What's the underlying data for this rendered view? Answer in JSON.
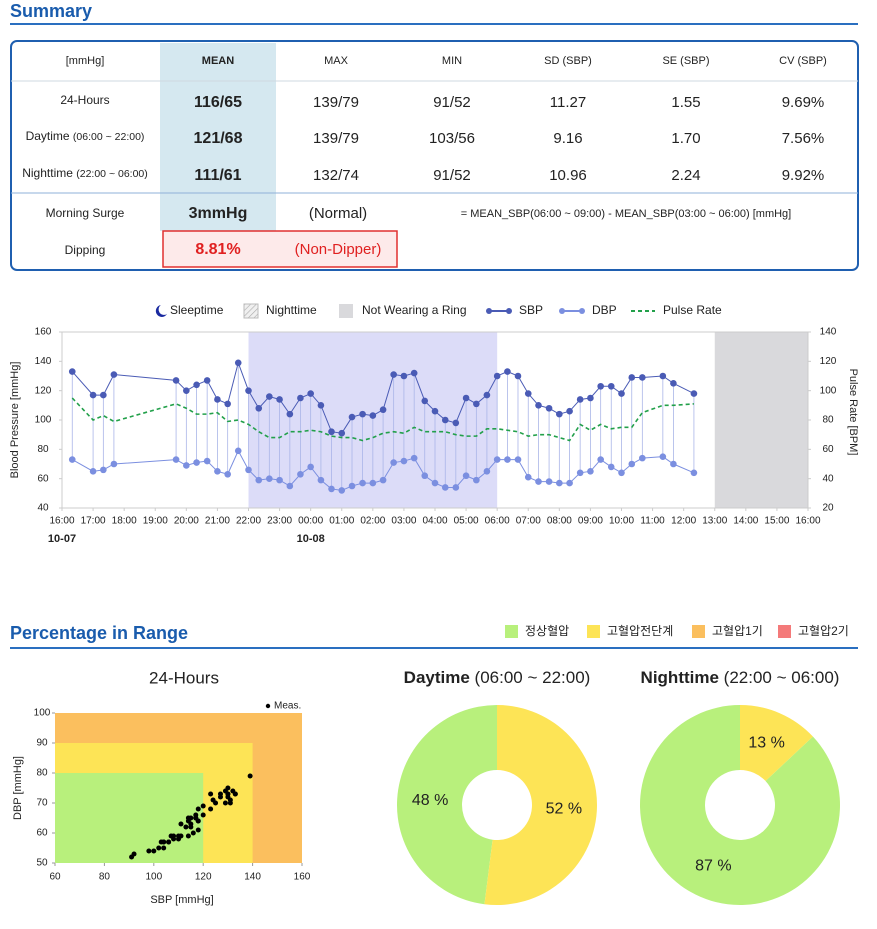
{
  "summary": {
    "title": "Summary",
    "unit": "[mmHg]",
    "columns": [
      "MEAN",
      "MAX",
      "MIN",
      "SD (SBP)",
      "SE (SBP)",
      "CV (SBP)"
    ],
    "rows": [
      {
        "label": "24-Hours",
        "values": [
          "116/65",
          "139/79",
          "91/52",
          "11.27",
          "1.55",
          "9.69%"
        ]
      },
      {
        "label": "Daytime",
        "note": "(06:00 ~ 22:00)",
        "values": [
          "121/68",
          "139/79",
          "103/56",
          "9.16",
          "1.70",
          "7.56%"
        ]
      },
      {
        "label": "Nighttime",
        "note": "(22:00 ~ 06:00)",
        "values": [
          "111/61",
          "132/74",
          "91/52",
          "10.96",
          "2.24",
          "9.92%"
        ]
      }
    ],
    "morning_surge": {
      "label": "Morning Surge",
      "value": "3mmHg",
      "status": "(Normal)",
      "formula": "= MEAN_SBP(06:00 ~ 09:00) - MEAN_SBP(03:00 ~ 06:00) [mmHg]"
    },
    "dipping": {
      "label": "Dipping",
      "value": "8.81%",
      "status": "(Non-Dipper)"
    }
  },
  "range_section": {
    "title": "Percentage in Range",
    "labels": [
      "정상혈압",
      "고혈압전단계",
      "고혈압1기",
      "고혈압2기"
    ],
    "colors": [
      "#b8f07c",
      "#fde456",
      "#fbbf5e",
      "#f47a7a"
    ]
  },
  "chart_data": [
    {
      "type": "line",
      "legend_items": [
        "Sleeptime",
        "Nighttime",
        "Not Wearing a Ring"
      ],
      "regions": [
        {
          "range": [
            22,
            30
          ],
          "color": "#dcdcf8"
        },
        {
          "range": [
            37,
            40
          ],
          "color": "#d9d9dc"
        }
      ],
      "ylabel": "Blood Pressure [mmHg]",
      "y2label": "Pulse Rate [BPM]",
      "xlim": [
        16,
        40
      ],
      "xticks": [
        {
          "value": 16,
          "label": "16:00"
        },
        {
          "value": 17,
          "label": "17:00"
        },
        {
          "value": 18,
          "label": "18:00"
        },
        {
          "value": 19,
          "label": "19:00"
        },
        {
          "value": 20,
          "label": "20:00"
        },
        {
          "value": 21,
          "label": "21:00"
        },
        {
          "value": 22,
          "label": "22:00"
        },
        {
          "value": 23,
          "label": "23:00"
        },
        {
          "value": 24,
          "label": "00:00"
        },
        {
          "value": 25,
          "label": "01:00"
        },
        {
          "value": 26,
          "label": "02:00"
        },
        {
          "value": 27,
          "label": "03:00"
        },
        {
          "value": 28,
          "label": "04:00"
        },
        {
          "value": 29,
          "label": "05:00"
        },
        {
          "value": 30,
          "label": "06:00"
        },
        {
          "value": 31,
          "label": "07:00"
        },
        {
          "value": 32,
          "label": "08:00"
        },
        {
          "value": 33,
          "label": "09:00"
        },
        {
          "value": 34,
          "label": "10:00"
        },
        {
          "value": 35,
          "label": "11:00"
        },
        {
          "value": 36,
          "label": "12:00"
        },
        {
          "value": 37,
          "label": "13:00"
        },
        {
          "value": 38,
          "label": "14:00"
        },
        {
          "value": 39,
          "label": "15:00"
        },
        {
          "value": 40,
          "label": "16:00"
        }
      ],
      "date_labels": [
        {
          "value": 16,
          "label": "10-07"
        },
        {
          "value": 24,
          "label": "10-08"
        }
      ],
      "ylim": [
        40,
        160
      ],
      "yticks": [
        40,
        60,
        80,
        100,
        120,
        140,
        160
      ],
      "y2lim": [
        20,
        140
      ],
      "y2ticks": [
        20,
        40,
        60,
        80,
        100,
        120,
        140
      ],
      "grid": false,
      "x": [
        16.33,
        17,
        17.33,
        17.67,
        19.67,
        20,
        20.33,
        20.67,
        21,
        21.33,
        21.67,
        22,
        22.33,
        22.67,
        23,
        23.33,
        23.67,
        24,
        24.33,
        24.67,
        25,
        25.33,
        25.67,
        26,
        26.33,
        26.67,
        27,
        27.33,
        27.67,
        28,
        28.33,
        28.67,
        29,
        29.33,
        29.67,
        30,
        30.33,
        30.67,
        31,
        31.33,
        31.67,
        32,
        32.33,
        32.67,
        33,
        33.33,
        33.67,
        34,
        34.33,
        34.67,
        35.33,
        35.67,
        36.33
      ],
      "series": [
        {
          "name": "SBP",
          "color": "#4a5bb5",
          "values": [
            133,
            117,
            117,
            131,
            127,
            120,
            124,
            127,
            114,
            111,
            139,
            120,
            108,
            116,
            114,
            104,
            115,
            118,
            110,
            92,
            91,
            102,
            104,
            103,
            107,
            131,
            130,
            132,
            113,
            106,
            100,
            98,
            115,
            111,
            117,
            130,
            133,
            130,
            118,
            110,
            108,
            104,
            106,
            114,
            115,
            123,
            123,
            118,
            129,
            129,
            130,
            125,
            118
          ]
        },
        {
          "name": "DBP",
          "color": "#7b8fe0",
          "values": [
            73,
            65,
            66,
            70,
            73,
            69,
            71,
            72,
            65,
            63,
            79,
            66,
            59,
            60,
            59,
            55,
            63,
            68,
            59,
            53,
            52,
            55,
            57,
            57,
            59,
            71,
            72,
            74,
            62,
            57,
            54,
            54,
            62,
            59,
            65,
            73,
            73,
            73,
            61,
            58,
            58,
            57,
            57,
            64,
            65,
            73,
            68,
            64,
            70,
            74,
            75,
            70,
            64
          ]
        },
        {
          "name": "Pulse Rate",
          "color": "#22a04a",
          "axis": "y2",
          "values": [
            95,
            80,
            83,
            79,
            91,
            88,
            84,
            84,
            85,
            79,
            80,
            77,
            72,
            68,
            68,
            72,
            72,
            73,
            72,
            69,
            68,
            68,
            66,
            68,
            71,
            72,
            71,
            75,
            72,
            72,
            72,
            70,
            69,
            69,
            74,
            74,
            73,
            72,
            69,
            70,
            70,
            68,
            66,
            77,
            73,
            77,
            74,
            75,
            75,
            85,
            90,
            90,
            91
          ]
        }
      ]
    },
    {
      "type": "scatter",
      "title": "24-Hours",
      "legend": "Meas.",
      "xlabel": "SBP [mmHg]",
      "ylabel": "DBP [mmHg]",
      "xlim": [
        60,
        160
      ],
      "xticks": [
        60,
        80,
        100,
        120,
        140,
        160
      ],
      "ylim": [
        50,
        100
      ],
      "yticks": [
        50,
        60,
        70,
        80,
        90,
        100
      ],
      "regions": [
        {
          "x": [
            60,
            160
          ],
          "y": [
            50,
            100
          ],
          "color": "#fbbf5e"
        },
        {
          "x": [
            60,
            140
          ],
          "y": [
            50,
            90
          ],
          "color": "#fde456"
        },
        {
          "x": [
            60,
            120
          ],
          "y": [
            50,
            80
          ],
          "color": "#b8f07c"
        }
      ]
    },
    {
      "type": "pie",
      "title": "Daytime",
      "subtitle": "(06:00 ~ 22:00)",
      "values": [
        48,
        52
      ],
      "value_labels": [
        "48 %",
        "52 %"
      ],
      "colors": [
        "#b8f07c",
        "#fde456"
      ]
    },
    {
      "type": "pie",
      "title": "Nighttime",
      "subtitle": "(22:00 ~ 06:00)",
      "values": [
        87,
        13
      ],
      "value_labels": [
        "87 %",
        "13 %"
      ],
      "colors": [
        "#b8f07c",
        "#fde456"
      ]
    }
  ]
}
